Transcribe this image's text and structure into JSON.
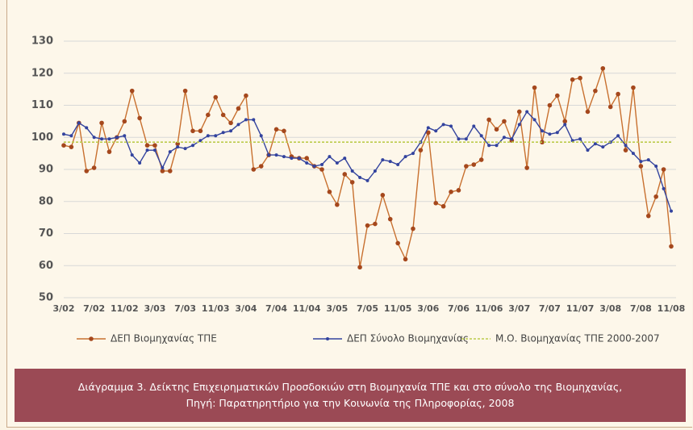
{
  "chart_data": {
    "type": "line",
    "caption": [
      "Διάγραμμα 3. Δείκτης Επιχειρηματικών Προσδοκιών στη Βιομηχανία ΤΠΕ και στο σύνολο της Βιομηχανίας,",
      "Πηγή: Παρατηρητήριο για την Κοινωνία της Πληροφορίας, 2008"
    ],
    "categories": [
      "3/02",
      null,
      null,
      null,
      "7/02",
      null,
      null,
      null,
      "11/02",
      null,
      null,
      null,
      "3/03",
      null,
      null,
      null,
      "7/03",
      null,
      null,
      null,
      "11/03",
      null,
      null,
      null,
      "3/04",
      null,
      null,
      null,
      "7/04",
      null,
      null,
      null,
      "11/04",
      null,
      null,
      null,
      "3/05",
      null,
      null,
      null,
      "7/05",
      null,
      null,
      null,
      "11/05",
      null,
      null,
      null,
      "3/06",
      null,
      null,
      null,
      "7/06",
      null,
      null,
      null,
      "11/06",
      null,
      null,
      null,
      "3/07",
      null,
      null,
      null,
      "7/07",
      null,
      null,
      null,
      "11/07",
      null,
      null,
      null,
      "3/08",
      null,
      null,
      null,
      "7/08",
      null,
      null,
      null,
      "11/08"
    ],
    "ylim": [
      50,
      130
    ],
    "yticks": [
      50,
      60,
      70,
      80,
      90,
      100,
      110,
      120,
      130
    ],
    "grid": true,
    "series": [
      {
        "name": "ΔΕΠ Βιομηχανίας ΤΠΕ",
        "color": "#c8702f",
        "marker": true,
        "values": [
          97.5,
          97,
          104.5,
          89.5,
          90.5,
          104.5,
          95.5,
          100,
          105,
          114.5,
          106,
          97.5,
          97.5,
          89.5,
          89.5,
          98,
          114.5,
          102,
          102,
          107,
          112.5,
          107,
          104.5,
          109,
          113,
          90,
          91,
          94.5,
          102.5,
          102,
          94,
          93.5,
          93.5,
          91,
          90,
          83,
          79,
          88.5,
          86,
          59.5,
          72.5,
          73,
          82,
          74.5,
          67,
          62,
          71.5,
          96,
          101.5,
          79.5,
          78.5,
          83,
          83.5,
          91,
          91.5,
          93,
          105.5,
          102.5,
          105,
          99,
          108,
          90.5,
          115.5,
          98.5,
          110,
          113,
          105,
          118,
          118.5,
          108,
          114.5,
          121.5,
          109.5,
          113.5,
          96,
          115.5,
          91,
          75.5,
          81.5,
          90,
          66
        ]
      },
      {
        "name": "ΔΕΠ Σύνολο Βιομηχανίας",
        "color": "#33439e",
        "marker": true,
        "values": [
          101,
          100.5,
          104.5,
          103,
          100,
          99.5,
          99.5,
          100,
          100.5,
          94.5,
          92,
          96,
          96,
          90.5,
          95.5,
          97,
          96.5,
          97.5,
          99,
          100.5,
          100.5,
          101.5,
          102,
          104,
          105.5,
          105.5,
          100.5,
          94.5,
          94.5,
          94,
          93.5,
          93.5,
          92,
          91,
          91.5,
          94,
          92,
          93.5,
          89.5,
          87.5,
          86.5,
          89.5,
          93,
          92.5,
          91.5,
          94,
          95,
          98.5,
          103,
          102,
          104,
          103.5,
          99.5,
          99.5,
          103.5,
          100.5,
          97.5,
          97.5,
          100,
          99.5,
          104,
          108,
          105.5,
          102,
          101,
          101.5,
          104,
          99,
          99.5,
          96,
          98,
          97,
          98.5,
          100.5,
          97.5,
          95,
          92.5,
          93,
          91,
          84,
          77
        ]
      },
      {
        "name": "Μ.Ο. Βιομηχανίας ΤΠΕ 2000-2007",
        "color": "#bccb4c",
        "marker": false,
        "dashed": true,
        "values": [
          98.5,
          98.5,
          98.5,
          98.5,
          98.5,
          98.5,
          98.5,
          98.5,
          98.5,
          98.5,
          98.5,
          98.5,
          98.5,
          98.5,
          98.5,
          98.5,
          98.5,
          98.5,
          98.5,
          98.5,
          98.5,
          98.5,
          98.5,
          98.5,
          98.5,
          98.5,
          98.5,
          98.5,
          98.5,
          98.5,
          98.5,
          98.5,
          98.5,
          98.5,
          98.5,
          98.5,
          98.5,
          98.5,
          98.5,
          98.5,
          98.5,
          98.5,
          98.5,
          98.5,
          98.5,
          98.5,
          98.5,
          98.5,
          98.5,
          98.5,
          98.5,
          98.5,
          98.5,
          98.5,
          98.5,
          98.5,
          98.5,
          98.5,
          98.5,
          98.5,
          98.5,
          98.5,
          98.5,
          98.5,
          98.5,
          98.5,
          98.5,
          98.5,
          98.5,
          98.5,
          98.5,
          98.5,
          98.5,
          98.5,
          98.5,
          98.5,
          98.5,
          98.5,
          98.5,
          98.5,
          98.5
        ]
      }
    ]
  }
}
